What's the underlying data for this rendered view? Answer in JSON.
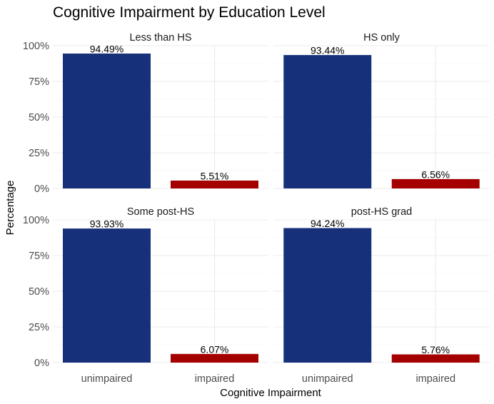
{
  "chart_data": {
    "type": "bar",
    "title": "Cognitive Impairment by Education Level",
    "xlabel": "Cognitive Impairment",
    "ylabel": "Percentage",
    "categories": [
      "unimpaired",
      "impaired"
    ],
    "colors": [
      "#17307a",
      "#a50000"
    ],
    "ylim": [
      0,
      100
    ],
    "yticks": [
      0,
      25,
      50,
      75,
      100
    ],
    "ytick_labels": [
      "0%",
      "25%",
      "50%",
      "75%",
      "100%"
    ],
    "grid": true,
    "facets": [
      {
        "name": "Less than HS",
        "values": [
          94.49,
          5.51
        ],
        "labels": [
          "94.49%",
          "5.51%"
        ]
      },
      {
        "name": "HS only",
        "values": [
          93.44,
          6.56
        ],
        "labels": [
          "93.44%",
          "6.56%"
        ]
      },
      {
        "name": "Some post-HS",
        "values": [
          93.93,
          6.07
        ],
        "labels": [
          "93.93%",
          "6.07%"
        ]
      },
      {
        "name": "post-HS grad",
        "values": [
          94.24,
          5.76
        ],
        "labels": [
          "94.24%",
          "5.76%"
        ]
      }
    ]
  }
}
